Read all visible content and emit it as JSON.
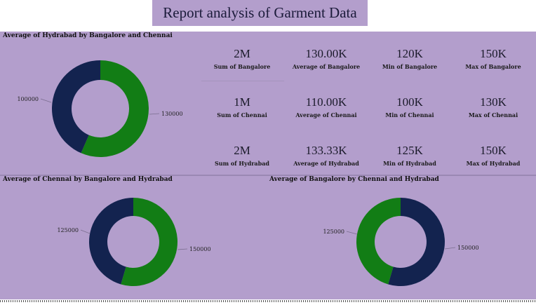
{
  "header": {
    "title": "Report analysis of Garment Data"
  },
  "colors": {
    "panel": "#b39ecc",
    "navy": "#13234f",
    "green": "#127d15"
  },
  "kpis": [
    {
      "value": "2M",
      "label": "Sum of Bangalore"
    },
    {
      "value": "130.00K",
      "label": "Average of Bangalore"
    },
    {
      "value": "120K",
      "label": "Min of Bangalore"
    },
    {
      "value": "150K",
      "label": "Max of Bangalore"
    },
    {
      "value": "1M",
      "label": "Sum of Chennai"
    },
    {
      "value": "110.00K",
      "label": "Average of Chennai"
    },
    {
      "value": "100K",
      "label": "Min of Chennai"
    },
    {
      "value": "130K",
      "label": "Max of Chennai"
    },
    {
      "value": "2M",
      "label": "Sum of Hydrabad"
    },
    {
      "value": "133.33K",
      "label": "Average of Hydrabad"
    },
    {
      "value": "125K",
      "label": "Min of Hydrabad"
    },
    {
      "value": "150K",
      "label": "Max of Hydrabad"
    }
  ],
  "chart_data": [
    {
      "type": "pie",
      "style": "donut",
      "title": "Average of Hydrabad by Bangalore and Chennai",
      "slices": [
        {
          "value": 130000,
          "label": "130000",
          "color": "#127d15"
        },
        {
          "value": 100000,
          "label": "100000",
          "color": "#13234f"
        }
      ]
    },
    {
      "type": "pie",
      "style": "donut",
      "title": "Average of Chennai by Bangalore and Hydrabad",
      "slices": [
        {
          "value": 150000,
          "label": "150000",
          "color": "#127d15"
        },
        {
          "value": 125000,
          "label": "125000",
          "color": "#13234f"
        }
      ]
    },
    {
      "type": "pie",
      "style": "donut",
      "title": "Average of Bangalore by Chennai and Hydrabad",
      "slices": [
        {
          "value": 150000,
          "label": "150000",
          "color": "#13234f"
        },
        {
          "value": 125000,
          "label": "125000",
          "color": "#127d15"
        }
      ]
    }
  ]
}
